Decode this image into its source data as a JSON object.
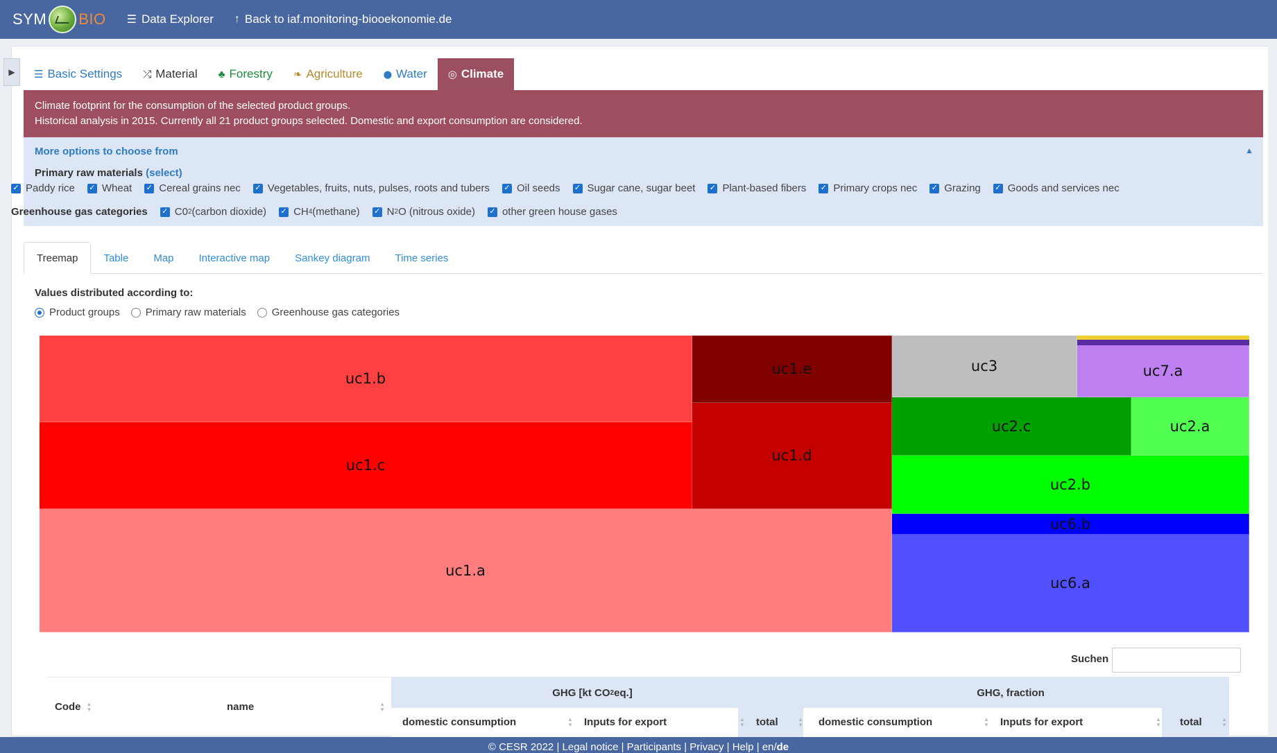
{
  "topbar": {
    "brand_left": "SYM",
    "brand_right": "BIO",
    "links": [
      {
        "icon": "binoculars-icon",
        "glyph": "☰",
        "label": "Data Explorer"
      },
      {
        "icon": "arrow-up-icon",
        "glyph": "↑",
        "label": "Back to iaf.monitoring-biooekonomie.de"
      }
    ]
  },
  "main_tabs": [
    {
      "label": "Basic Settings",
      "icon": "binoculars-icon",
      "glyph": "☰",
      "color": "#2f7cc2",
      "active": false
    },
    {
      "label": "Material",
      "icon": "shuffle-icon",
      "glyph": "⤮",
      "color": "#333333",
      "active": false
    },
    {
      "label": "Forestry",
      "icon": "tree-icon",
      "glyph": "♣",
      "color": "#1d8a3c",
      "active": false
    },
    {
      "label": "Agriculture",
      "icon": "leaf-icon",
      "glyph": "❧",
      "color": "#b58a2e",
      "active": false
    },
    {
      "label": "Water",
      "icon": "drop-icon",
      "glyph": "⬤",
      "color": "#2f7cc2",
      "active": false
    },
    {
      "label": "Climate",
      "icon": "globe-icon",
      "glyph": "◎",
      "color": "#ffffff",
      "active": true
    }
  ],
  "banner": {
    "line1": "Climate footprint for the consumption of the selected product groups.",
    "line2": "Historical analysis in 2015. Currently all 21 product groups selected. Domestic and export consumption are considered."
  },
  "options": {
    "header": "More options to choose from",
    "raw_materials_label": "Primary raw materials",
    "raw_materials_select": "(select)",
    "raw_materials": [
      "Paddy rice",
      "Wheat",
      "Cereal grains nec",
      "Vegetables, fruits, nuts, pulses, roots and tubers",
      "Oil seeds",
      "Sugar cane, sugar beet",
      "Plant-based fibers",
      "Primary crops nec",
      "Grazing",
      "Goods and services nec"
    ],
    "ghg_label": "Greenhouse gas categories",
    "ghg": [
      {
        "pre": "C0",
        "sub": "2",
        "post": " (carbon dioxide)"
      },
      {
        "pre": "CH",
        "sub": "4",
        "post": " (methane)"
      },
      {
        "pre": "N",
        "sub": "2",
        "post": "O (nitrous oxide)"
      },
      {
        "pre": "other green house gases",
        "sub": "",
        "post": ""
      }
    ]
  },
  "view_tabs": [
    "Treemap",
    "Table",
    "Map",
    "Interactive map",
    "Sankey diagram",
    "Time series"
  ],
  "active_view": "Treemap",
  "distribution": {
    "label": "Values distributed according to:",
    "options": [
      "Product groups",
      "Primary raw materials",
      "Greenhouse gas categories"
    ],
    "selected": "Product groups"
  },
  "treemap": {
    "cells": [
      {
        "label": "uc1.b",
        "color": "#ff4040"
      },
      {
        "label": "uc1.c",
        "color": "#ff0000"
      },
      {
        "label": "uc1.a",
        "color": "#ff7d7d"
      },
      {
        "label": "uc1.e",
        "color": "#800000"
      },
      {
        "label": "uc1.d",
        "color": "#c40000"
      },
      {
        "label": "uc3",
        "color": "#bebebe"
      },
      {
        "label": "uc7.a",
        "color": "#be80f0"
      },
      {
        "label": "uc2.c",
        "color": "#00a000"
      },
      {
        "label": "uc2.a",
        "color": "#50ff50"
      },
      {
        "label": "uc2.b",
        "color": "#00ff00"
      },
      {
        "label": "uc6.b",
        "color": "#0000ff"
      },
      {
        "label": "uc6.a",
        "color": "#5050ff"
      }
    ],
    "thin_bars": [
      {
        "color": "#f0d030"
      },
      {
        "color": "#5a2aa0"
      }
    ]
  },
  "search": {
    "label": "Suchen",
    "value": ""
  },
  "table": {
    "code_header": "Code",
    "name_header": "name",
    "group1": {
      "pre": "GHG [kt CO",
      "sub": "2",
      "post": " eq.]"
    },
    "group2": "GHG, fraction",
    "sub_headers": [
      "domestic consumption",
      "Inputs for export",
      "total",
      "domestic consumption",
      "Inputs for export",
      "total"
    ]
  },
  "footer": {
    "copyright": "© CESR 2022 |",
    "links": [
      "Legal notice",
      "Participants",
      "Privacy",
      "Help"
    ],
    "lang_en": "en",
    "lang_de": "de"
  }
}
